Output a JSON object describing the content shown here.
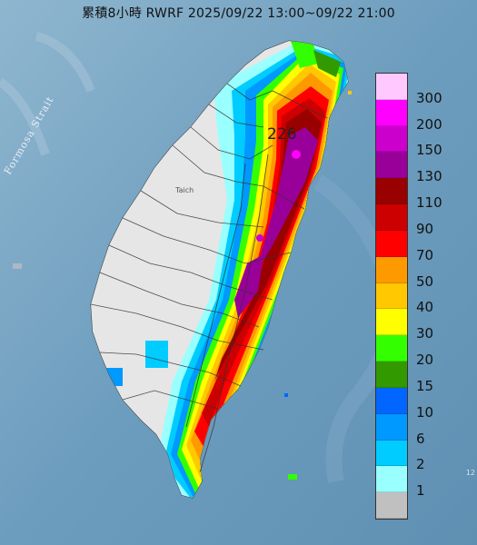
{
  "title": "累積8小時 RWRF 2025/09/22 13:00~09/22 21:00",
  "strait_label": "Formosa Strait",
  "city_label": "Taich",
  "max_value": "226",
  "legend": {
    "levels": [
      {
        "label": "300",
        "color": "#ffc8ff"
      },
      {
        "label": "200",
        "color": "#ff00ff"
      },
      {
        "label": "150",
        "color": "#cc00cc"
      },
      {
        "label": "130",
        "color": "#990099"
      },
      {
        "label": "110",
        "color": "#990000"
      },
      {
        "label": "90",
        "color": "#cc0000"
      },
      {
        "label": "70",
        "color": "#ff0000"
      },
      {
        "label": "50",
        "color": "#ff9900"
      },
      {
        "label": "40",
        "color": "#ffc800"
      },
      {
        "label": "30",
        "color": "#ffff00"
      },
      {
        "label": "20",
        "color": "#33ff00"
      },
      {
        "label": "15",
        "color": "#339900"
      },
      {
        "label": "10",
        "color": "#0066ff"
      },
      {
        "label": "6",
        "color": "#0099ff"
      },
      {
        "label": "2",
        "color": "#00ccff"
      },
      {
        "label": "1",
        "color": "#99ffff"
      },
      {
        "label": "",
        "color": "#c0c0c0"
      }
    ]
  },
  "corner_note": "12"
}
